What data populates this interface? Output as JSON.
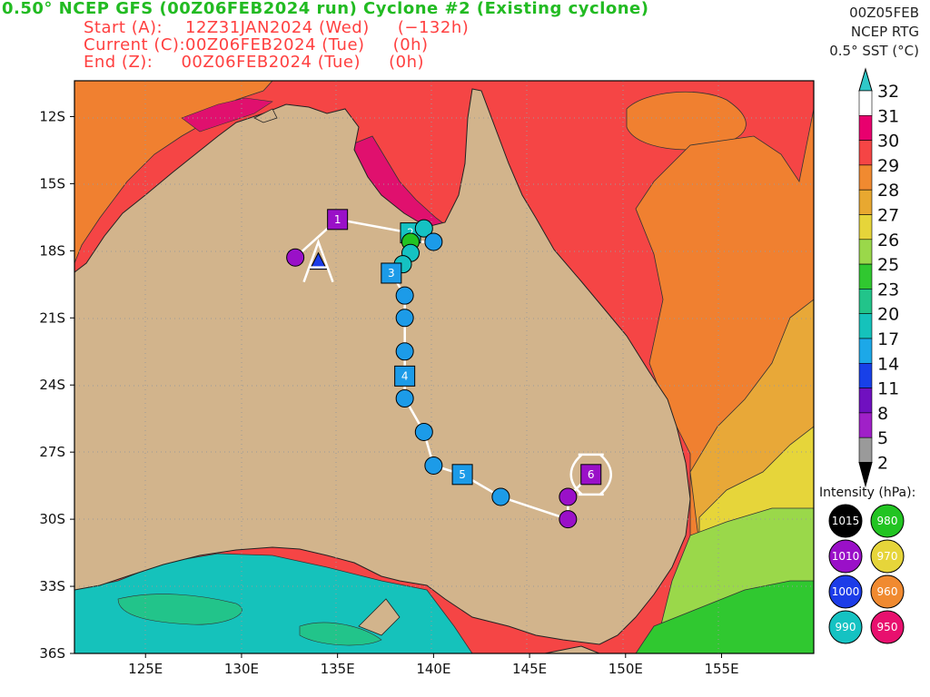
{
  "header": {
    "title": "0.50° NCEP GFS (00Z06FEB2024 run) Cyclone #2 (Existing cyclone)",
    "rows": [
      {
        "label": "Start (A):",
        "time": "12Z31JAN2024 (Wed)",
        "offset": "(−132h)"
      },
      {
        "label": "Current (C):",
        "time": "00Z06FEB2024 (Tue)",
        "offset": "(0h)"
      },
      {
        "label": "End (Z):",
        "time": "00Z06FEB2024 (Tue)",
        "offset": "(0h)"
      }
    ]
  },
  "right_tag": {
    "line1": "00Z05FEB",
    "line2": "NCEP RTG",
    "line3": "0.5° SST (°C)"
  },
  "axes": {
    "lon_ticks": [
      "125E",
      "130E",
      "135E",
      "140E",
      "145E",
      "150E",
      "155E"
    ],
    "lon_values": [
      125,
      130,
      135,
      140,
      145,
      150,
      155
    ],
    "lat_ticks": [
      "12S",
      "15S",
      "18S",
      "21S",
      "24S",
      "27S",
      "30S",
      "33S",
      "36S"
    ],
    "lat_values": [
      -12,
      -15,
      -18,
      -21,
      -24,
      -27,
      -30,
      -33,
      -36
    ],
    "lon_range": [
      121.3,
      159.8
    ],
    "lat_range": [
      -36,
      -10.4
    ]
  },
  "colorbar": {
    "labels": [
      "32",
      "31",
      "30",
      "29",
      "28",
      "27",
      "26",
      "25",
      "23",
      "20",
      "17",
      "14",
      "11",
      "8",
      "5",
      "2"
    ],
    "colors": [
      "#ffffff",
      "#e8006e",
      "#f54545",
      "#f08a30",
      "#e8a830",
      "#e6d53a",
      "#9ad84a",
      "#30c830",
      "#22c48a",
      "#15c2bb",
      "#1ca8e8",
      "#1840e8",
      "#7010c0",
      "#a020c8",
      "#9a9a9a"
    ],
    "top_arrow_color": "#30c8c8",
    "bottom_arrow_color": "#000000"
  },
  "map_colors": {
    "land": "#d2b48c",
    "sst_29": "#f08030",
    "sst_30": "#f54545",
    "sst_31": "#e0106e",
    "sst_28": "#e8a838",
    "sst_27": "#e6d53a",
    "sst_26": "#9ad84a",
    "sst_25": "#30c830",
    "sst_23": "#22c48a",
    "sst_20": "#15c2bb",
    "track": "#ffffff"
  },
  "track": {
    "points": [
      {
        "lon": 132.8,
        "lat": -18.3,
        "hpa": 1010
      },
      {
        "lon": 135.0,
        "lat": -16.6,
        "hpa": 1010,
        "marker": "square",
        "label": "1"
      },
      {
        "lon": 138.8,
        "lat": -17.2,
        "hpa": 990,
        "marker": "square",
        "label": "2"
      },
      {
        "lon": 139.5,
        "lat": -17.0,
        "hpa": 990
      },
      {
        "lon": 140.0,
        "lat": -17.6,
        "hpa": 1000
      },
      {
        "lon": 138.8,
        "lat": -17.6,
        "hpa": 980
      },
      {
        "lon": 138.8,
        "lat": -18.1,
        "hpa": 990
      },
      {
        "lon": 138.4,
        "lat": -18.6,
        "hpa": 990
      },
      {
        "lon": 137.8,
        "lat": -19.0,
        "hpa": 1000,
        "marker": "square",
        "label": "3"
      },
      {
        "lon": 138.5,
        "lat": -20.0,
        "hpa": 1000
      },
      {
        "lon": 138.5,
        "lat": -21.0,
        "hpa": 1000
      },
      {
        "lon": 138.5,
        "lat": -22.5,
        "hpa": 1000
      },
      {
        "lon": 138.5,
        "lat": -23.6,
        "hpa": 1000,
        "marker": "square",
        "label": "4"
      },
      {
        "lon": 138.5,
        "lat": -24.6,
        "hpa": 1000
      },
      {
        "lon": 139.5,
        "lat": -26.1,
        "hpa": 1000
      },
      {
        "lon": 140.0,
        "lat": -27.6,
        "hpa": 1000
      },
      {
        "lon": 141.5,
        "lat": -28.0,
        "hpa": 1000,
        "marker": "square",
        "label": "5"
      },
      {
        "lon": 143.5,
        "lat": -29.0,
        "hpa": 1000
      },
      {
        "lon": 147.0,
        "lat": -30.0,
        "hpa": 1010
      },
      {
        "lon": 147.0,
        "lat": -29.0,
        "hpa": 1010
      },
      {
        "lon": 148.2,
        "lat": -28.0,
        "hpa": 1010,
        "marker": "square",
        "label": "6"
      }
    ],
    "start_lon": 134.0,
    "start_lat": -18.5,
    "start_letter": "A",
    "end_lon": 148.2,
    "end_lat": -28.0
  },
  "intensity_legend": {
    "title": "Intensity (hPa):",
    "items": [
      {
        "label": "1015",
        "color": "#000000"
      },
      {
        "label": "980",
        "color": "#22c422"
      },
      {
        "label": "1010",
        "color": "#9a10c8"
      },
      {
        "label": "970",
        "color": "#e6d53a"
      },
      {
        "label": "1000",
        "color": "#1c3ce8"
      },
      {
        "label": "960",
        "color": "#f08a30"
      },
      {
        "label": "990",
        "color": "#15c2c2"
      },
      {
        "label": "950",
        "color": "#e8106e"
      }
    ]
  }
}
